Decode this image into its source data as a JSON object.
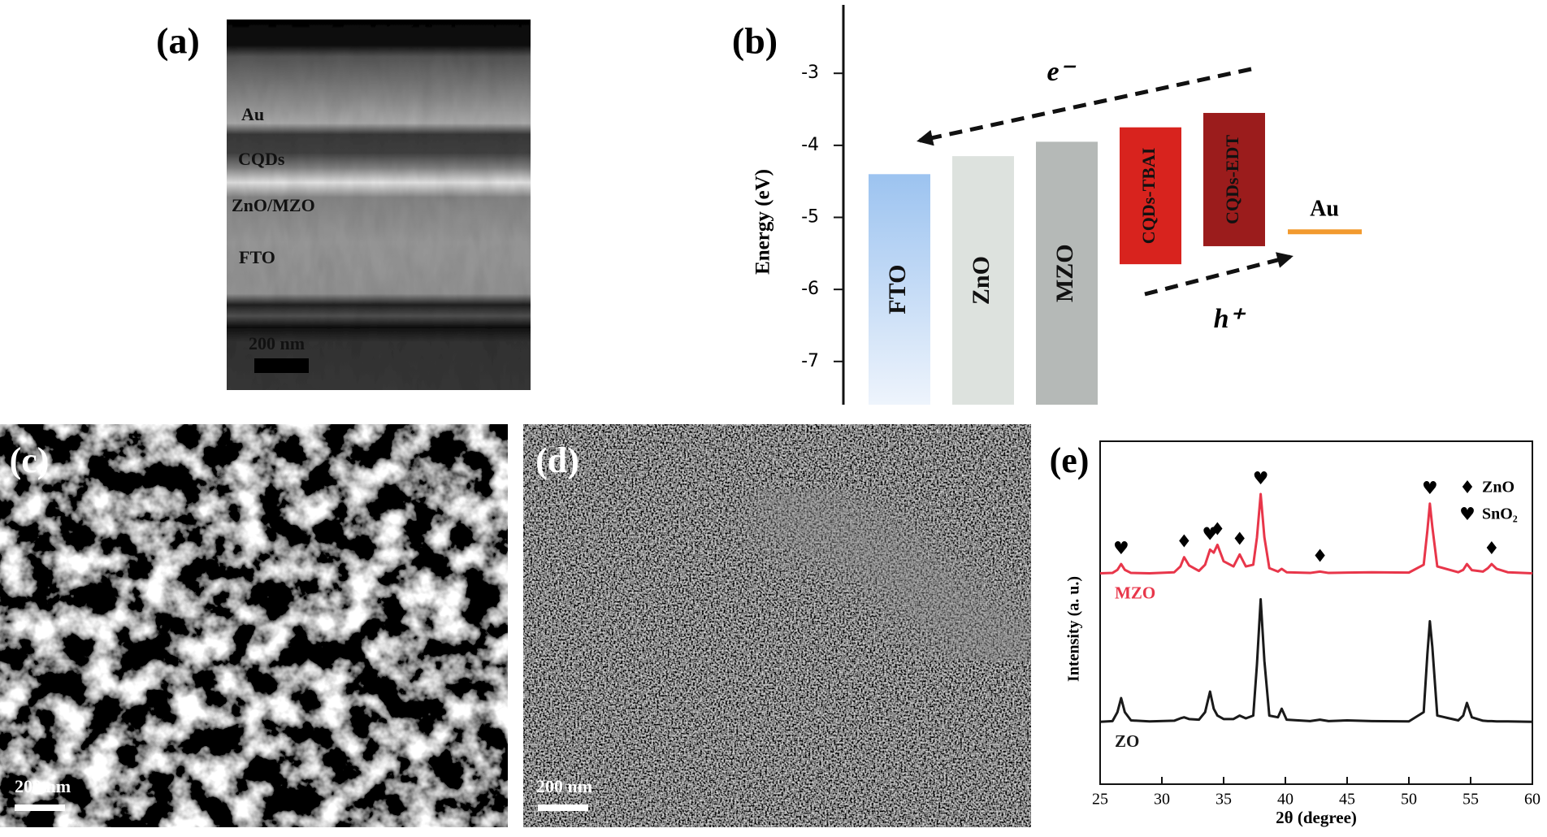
{
  "panel_a": {
    "label": "(a)",
    "layers": [
      "Au",
      "CQDs",
      "ZnO/MZO",
      "FTO"
    ],
    "scale_bar": "200 nm"
  },
  "panel_c": {
    "label": "(c)",
    "scale_bar": "200 nm"
  },
  "panel_d": {
    "label": "(d)",
    "scale_bar": "200 nm"
  },
  "chart_data": [
    {
      "type": "range_bar",
      "label": "(b)",
      "y_label": "Energy (eV)",
      "categories": [
        "FTO",
        "ZnO",
        "MZO",
        "CQDs-TBAI",
        "CQDs-EDT"
      ],
      "low": [
        -7.6,
        -7.6,
        -7.6,
        -5.65,
        -5.4
      ],
      "high": [
        -4.4,
        -4.15,
        -3.95,
        -3.75,
        -3.55
      ],
      "colors": [
        "#a9cdf3",
        "#dde2de",
        "#b5b9b7",
        "#d8231e",
        "#9b1c1c"
      ],
      "levels": [
        {
          "name": "Au",
          "value": -5.2,
          "color": "#f29a2e"
        }
      ],
      "annotations": [
        "e⁻",
        "h⁺"
      ],
      "ylim": [
        -7.6,
        -2.05
      ],
      "yticks": [
        -3,
        -4,
        -5,
        -6,
        -7
      ]
    },
    {
      "type": "line",
      "label": "(e)",
      "x_label": "2θ (degree)",
      "y_label": "Intensity (a. u.)",
      "x": [
        25,
        26,
        26.4,
        26.7,
        27,
        27.5,
        29,
        31,
        31.5,
        31.8,
        32.2,
        33,
        33.5,
        33.9,
        34.2,
        34.5,
        35,
        35.8,
        36.3,
        36.8,
        37.4,
        37.7,
        38,
        38.3,
        38.7,
        39.4,
        39.7,
        40.1,
        42,
        42.8,
        43.5,
        45,
        47,
        50,
        51.2,
        51.5,
        51.7,
        51.9,
        52.3,
        54,
        54.4,
        54.7,
        55.1,
        56,
        56.4,
        56.7,
        57.1,
        58,
        60
      ],
      "series": [
        {
          "name": "MZO",
          "color": "#e8364a",
          "values": [
            61.5,
            61.6,
            62.5,
            64.2,
            62.5,
            61.6,
            61.5,
            61.8,
            63.5,
            66.2,
            63.8,
            62.2,
            64,
            68.4,
            67.5,
            69.8,
            65,
            63.5,
            67,
            63.5,
            64,
            72,
            84.6,
            72,
            63,
            62,
            62.8,
            61.8,
            61.6,
            62,
            61.6,
            61.7,
            61.8,
            61.7,
            64,
            74,
            81.8,
            75,
            63.5,
            61.8,
            62.5,
            64.2,
            62.4,
            62,
            63,
            64.2,
            62.8,
            61.8,
            61.5
          ]
        },
        {
          "name": "ZO",
          "color": "#1a1a1a",
          "values": [
            18.2,
            18.4,
            21,
            25.1,
            21,
            18.6,
            18.3,
            18.5,
            19.2,
            19.5,
            19,
            18.8,
            21,
            27,
            22,
            20,
            19,
            19,
            20,
            19.2,
            20,
            35,
            53.9,
            36,
            20,
            19.5,
            22,
            18.8,
            18.4,
            18.8,
            18.4,
            18.6,
            18.4,
            18.3,
            21,
            38,
            47.5,
            40,
            20,
            18.6,
            20,
            23.7,
            19.5,
            18.5,
            18.4,
            18.4,
            18.3,
            18.3,
            18.2
          ]
        }
      ],
      "xlim": [
        25,
        60
      ],
      "xticks": [
        25,
        30,
        35,
        40,
        45,
        50,
        55,
        60
      ],
      "ylim": [
        0,
        100
      ],
      "phase_legend": [
        {
          "symbol": "♦",
          "label": "ZnO"
        },
        {
          "symbol": "♥",
          "label": "SnO₂"
        }
      ],
      "peak_marks": [
        {
          "x": 26.7,
          "phase": 1
        },
        {
          "x": 31.8,
          "phase": 0
        },
        {
          "x": 33.9,
          "phase": 1
        },
        {
          "x": 34.5,
          "phase": 0
        },
        {
          "x": 36.3,
          "phase": 0
        },
        {
          "x": 38,
          "phase": 1
        },
        {
          "x": 42.8,
          "phase": 0
        },
        {
          "x": 51.7,
          "phase": 1
        },
        {
          "x": 56.7,
          "phase": 0
        }
      ]
    }
  ]
}
